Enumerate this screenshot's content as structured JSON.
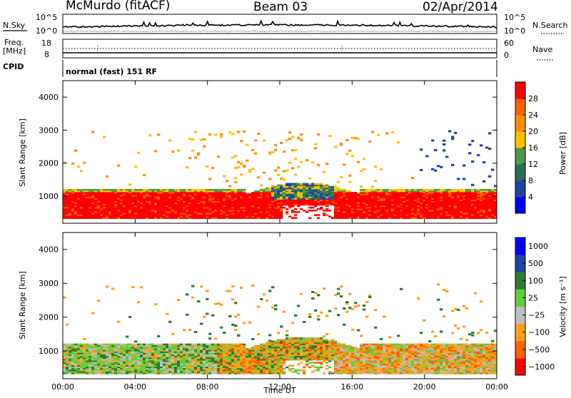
{
  "header": {
    "station": "McMurdo (fitACF)",
    "beam": "Beam 03",
    "date": "02/Apr/2014"
  },
  "noise_panel": {
    "left_label": "N.Sky",
    "right_label": "N.Search",
    "left_ticks": [
      "10^5",
      "10^0"
    ],
    "right_ticks": [
      "10^5",
      "10^0"
    ]
  },
  "freq_panel": {
    "left_label_1": "Freq.",
    "left_label_2": "[MHz]",
    "left_ticks": [
      "18",
      "8"
    ],
    "right_label": "Nave",
    "right_ticks": [
      "60",
      "0"
    ]
  },
  "cpid_panel": {
    "label": "CPID",
    "value": "normal (fast) 151 RF"
  },
  "colors": {
    "power": [
      "#0000ff",
      "#1f44a6",
      "#2e6e55",
      "#4c9a44",
      "#ffc000",
      "#ff8c00",
      "#ff6000",
      "#ff0000"
    ],
    "velocity": [
      "#ff0000",
      "#ff6000",
      "#ff9f1a",
      "#bebebe",
      "#5fcf3a",
      "#2e7a2e",
      "#1f44a6",
      "#0000ff"
    ]
  },
  "chart_data": [
    {
      "type": "heatmap",
      "name": "power",
      "xlabel": "",
      "ylabel": "Slant Range [km]",
      "ylim": [
        180,
        4500
      ],
      "yticks": [
        "1000",
        "2000",
        "3000",
        "4000"
      ],
      "xlim": [
        "00:00",
        "24:00"
      ],
      "colorbar_label": "Power [dB]",
      "colorbar_ticks": [
        "4",
        "8",
        "12",
        "16",
        "20",
        "24",
        "28"
      ],
      "colorbar_range": [
        0,
        32
      ]
    },
    {
      "type": "heatmap",
      "name": "velocity",
      "xlabel": "Time UT",
      "ylabel": "Slant Range [km]",
      "ylim": [
        180,
        4500
      ],
      "yticks": [
        "1000",
        "2000",
        "3000",
        "4000"
      ],
      "xticks": [
        "00:00",
        "04:00",
        "08:00",
        "12:00",
        "16:00",
        "20:00",
        "00:00"
      ],
      "xlim": [
        "00:00",
        "24:00"
      ],
      "colorbar_label": "Velocity [m s⁻¹]",
      "colorbar_ticks": [
        "1000",
        "500",
        "100",
        "25",
        "−25",
        "−100",
        "−500",
        "−1000"
      ]
    }
  ]
}
